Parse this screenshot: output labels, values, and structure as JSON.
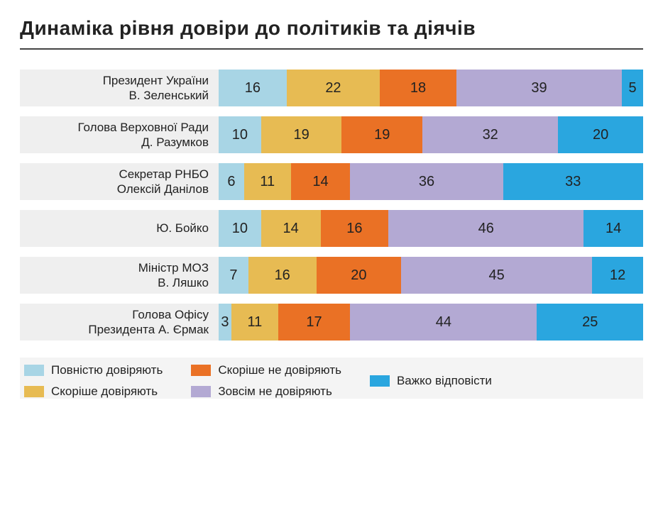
{
  "chart": {
    "type": "stacked-bar-horizontal",
    "title": "Динаміка рівня довіри до політиків та діячів",
    "title_fontsize": 28,
    "label_fontsize": 17,
    "value_fontsize": 20,
    "background_color": "#ffffff",
    "row_bg_color": "#efefef",
    "title_rule_color": "#444444",
    "series": [
      {
        "key": "fully_trust",
        "label": "Повністю довіряють",
        "color": "#a8d5e5"
      },
      {
        "key": "rather_trust",
        "label": "Скоріше довіряють",
        "color": "#e7bb53"
      },
      {
        "key": "rather_distrust",
        "label": "Скоріше не довіряють",
        "color": "#ea7125"
      },
      {
        "key": "fully_distrust",
        "label": "Зовсім не довіряють",
        "color": "#b3a9d3"
      },
      {
        "key": "hard_to_say",
        "label": "Важко відповісти",
        "color": "#2aa6df"
      }
    ],
    "items": [
      {
        "label_line1": "Президент України",
        "label_line2": "В. Зеленський",
        "values": [
          16,
          22,
          18,
          39,
          5
        ]
      },
      {
        "label_line1": "Голова Верховної Ради",
        "label_line2": "Д. Разумков",
        "values": [
          10,
          19,
          19,
          32,
          20
        ]
      },
      {
        "label_line1": "Секретар РНБО",
        "label_line2": "Олексій Данілов",
        "values": [
          6,
          11,
          14,
          36,
          33
        ]
      },
      {
        "label_line1": "",
        "label_line2": "Ю. Бойко",
        "values": [
          10,
          14,
          16,
          46,
          14
        ]
      },
      {
        "label_line1": "Міністр МОЗ",
        "label_line2": "В. Ляшко",
        "values": [
          7,
          16,
          20,
          45,
          12
        ]
      },
      {
        "label_line1": "Голова Офісу",
        "label_line2": "Президента А. Єрмак",
        "values": [
          3,
          11,
          17,
          44,
          25
        ]
      }
    ],
    "legend_layout": [
      [
        0,
        1
      ],
      [
        2,
        3
      ],
      [
        4
      ]
    ]
  }
}
